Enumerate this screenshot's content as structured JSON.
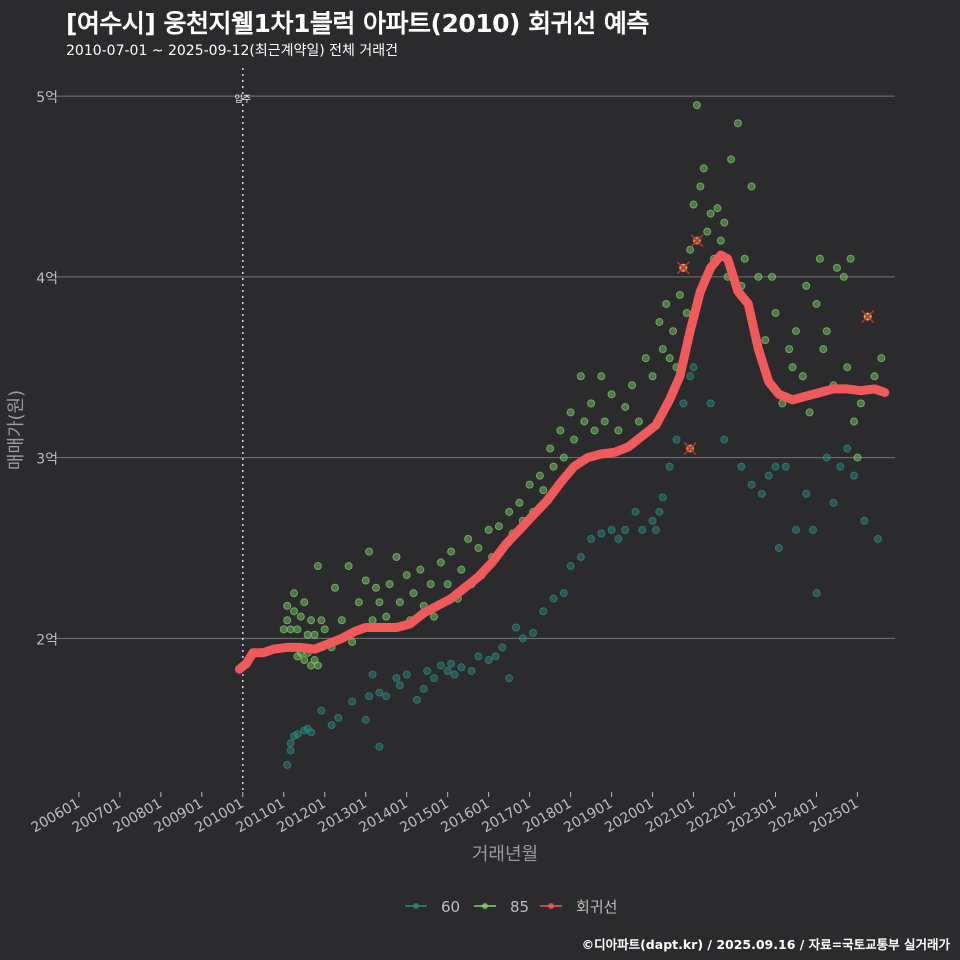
{
  "header": {
    "title": "[여수시] 웅천지웰1차1블럭 아파트(2010) 회귀선 예측",
    "subtitle": "2010-07-01 ~ 2025-09-12(최근계약일) 전체 거래건"
  },
  "footer": {
    "credit": "©디아파트(dapt.kr) / 2025.09.16 / 자료=국토교통부 실거래가"
  },
  "colors": {
    "background": "#2b2b2d",
    "grid": "#8a8a8a",
    "series_60": "#2a8f86",
    "series_85": "#7ed36a",
    "regression": "#f05a5a",
    "axis_text": "#bdbdbd",
    "marker_cross": "#c0302c"
  },
  "chart_data": {
    "type": "scatter",
    "xlabel": "거래년월",
    "ylabel": "매매가(원)",
    "x_ticks": [
      "200601",
      "200701",
      "200801",
      "200901",
      "201001",
      "201101",
      "201201",
      "201301",
      "201401",
      "201501",
      "201601",
      "201701",
      "201801",
      "201901",
      "202001",
      "202101",
      "202201",
      "202301",
      "202401",
      "202501"
    ],
    "xlim": [
      "2005-06-01",
      "2025-12-01"
    ],
    "ylim": [
      1.15,
      5.1
    ],
    "y_ticks": [
      {
        "value": 2,
        "label": "2억"
      },
      {
        "value": 3,
        "label": "3억"
      },
      {
        "value": 4,
        "label": "4억"
      },
      {
        "value": 5,
        "label": "5억"
      }
    ],
    "y_unit": "억",
    "grid": true,
    "legend_position": "bottom",
    "legend": [
      {
        "key": "60",
        "label": "60"
      },
      {
        "key": "85",
        "label": "85"
      },
      {
        "key": "reg",
        "label": "회귀선"
      }
    ],
    "annotations": [
      {
        "x": "2010-01",
        "label": "입주",
        "style": "dotted-vline"
      }
    ],
    "series": [
      {
        "name": "60",
        "points": [
          [
            "2011-02",
            1.3
          ],
          [
            "2011-03",
            1.38
          ],
          [
            "2011-03",
            1.42
          ],
          [
            "2011-04",
            1.46
          ],
          [
            "2011-05",
            1.47
          ],
          [
            "2011-07",
            1.49
          ],
          [
            "2011-08",
            1.5
          ],
          [
            "2011-09",
            1.48
          ],
          [
            "2011-12",
            1.6
          ],
          [
            "2012-03",
            1.52
          ],
          [
            "2012-05",
            1.56
          ],
          [
            "2012-09",
            1.65
          ],
          [
            "2013-01",
            1.55
          ],
          [
            "2013-02",
            1.68
          ],
          [
            "2013-03",
            1.8
          ],
          [
            "2013-05",
            1.4
          ],
          [
            "2013-05",
            1.7
          ],
          [
            "2013-07",
            1.68
          ],
          [
            "2013-10",
            1.78
          ],
          [
            "2013-11",
            1.74
          ],
          [
            "2014-01",
            1.8
          ],
          [
            "2014-04",
            1.66
          ],
          [
            "2014-06",
            1.72
          ],
          [
            "2014-07",
            1.82
          ],
          [
            "2014-09",
            1.78
          ],
          [
            "2014-11",
            1.85
          ],
          [
            "2015-01",
            1.82
          ],
          [
            "2015-02",
            1.86
          ],
          [
            "2015-03",
            1.8
          ],
          [
            "2015-05",
            1.84
          ],
          [
            "2015-08",
            1.82
          ],
          [
            "2015-10",
            1.9
          ],
          [
            "2016-01",
            1.88
          ],
          [
            "2016-03",
            1.9
          ],
          [
            "2016-05",
            1.95
          ],
          [
            "2016-07",
            1.78
          ],
          [
            "2016-09",
            2.06
          ],
          [
            "2016-11",
            2.0
          ],
          [
            "2017-02",
            2.03
          ],
          [
            "2017-05",
            2.15
          ],
          [
            "2017-08",
            2.22
          ],
          [
            "2017-11",
            2.25
          ],
          [
            "2018-01",
            2.4
          ],
          [
            "2018-04",
            2.45
          ],
          [
            "2018-07",
            2.55
          ],
          [
            "2018-10",
            2.58
          ],
          [
            "2019-01",
            2.6
          ],
          [
            "2019-03",
            2.55
          ],
          [
            "2019-05",
            2.6
          ],
          [
            "2019-08",
            2.7
          ],
          [
            "2019-10",
            2.6
          ],
          [
            "2020-01",
            2.65
          ],
          [
            "2020-02",
            2.6
          ],
          [
            "2020-03",
            2.7
          ],
          [
            "2020-04",
            2.78
          ],
          [
            "2020-06",
            2.95
          ],
          [
            "2020-08",
            3.1
          ],
          [
            "2020-10",
            3.3
          ],
          [
            "2020-12",
            3.45
          ],
          [
            "2021-01",
            3.5
          ],
          [
            "2021-06",
            3.3
          ],
          [
            "2021-10",
            3.1
          ],
          [
            "2022-03",
            2.95
          ],
          [
            "2022-06",
            2.85
          ],
          [
            "2022-09",
            2.8
          ],
          [
            "2022-11",
            2.9
          ],
          [
            "2023-01",
            2.95
          ],
          [
            "2023-02",
            2.5
          ],
          [
            "2023-04",
            2.95
          ],
          [
            "2023-07",
            2.6
          ],
          [
            "2023-10",
            2.8
          ],
          [
            "2023-12",
            2.6
          ],
          [
            "2024-01",
            2.25
          ],
          [
            "2024-04",
            3.0
          ],
          [
            "2024-06",
            2.75
          ],
          [
            "2024-08",
            2.95
          ],
          [
            "2024-10",
            3.05
          ],
          [
            "2024-12",
            2.9
          ],
          [
            "2025-03",
            2.65
          ],
          [
            "2025-07",
            2.55
          ]
        ]
      },
      {
        "name": "85",
        "points": [
          [
            "2011-01",
            2.05
          ],
          [
            "2011-02",
            2.1
          ],
          [
            "2011-02",
            2.18
          ],
          [
            "2011-03",
            1.95
          ],
          [
            "2011-03",
            2.05
          ],
          [
            "2011-04",
            2.25
          ],
          [
            "2011-04",
            2.15
          ],
          [
            "2011-05",
            2.05
          ],
          [
            "2011-05",
            1.9
          ],
          [
            "2011-06",
            2.12
          ],
          [
            "2011-06",
            1.92
          ],
          [
            "2011-07",
            2.2
          ],
          [
            "2011-07",
            1.88
          ],
          [
            "2011-08",
            1.92
          ],
          [
            "2011-08",
            2.02
          ],
          [
            "2011-09",
            1.85
          ],
          [
            "2011-09",
            2.1
          ],
          [
            "2011-10",
            1.88
          ],
          [
            "2011-10",
            2.02
          ],
          [
            "2011-11",
            1.85
          ],
          [
            "2011-11",
            2.4
          ],
          [
            "2011-12",
            1.95
          ],
          [
            "2011-12",
            2.1
          ],
          [
            "2012-01",
            2.05
          ],
          [
            "2012-03",
            1.95
          ],
          [
            "2012-04",
            2.28
          ],
          [
            "2012-06",
            2.1
          ],
          [
            "2012-08",
            2.4
          ],
          [
            "2012-09",
            1.98
          ],
          [
            "2012-11",
            2.2
          ],
          [
            "2013-01",
            2.32
          ],
          [
            "2013-02",
            2.48
          ],
          [
            "2013-03",
            2.1
          ],
          [
            "2013-04",
            2.28
          ],
          [
            "2013-05",
            2.2
          ],
          [
            "2013-07",
            2.12
          ],
          [
            "2013-08",
            2.3
          ],
          [
            "2013-10",
            2.45
          ],
          [
            "2013-11",
            2.2
          ],
          [
            "2014-01",
            2.35
          ],
          [
            "2014-02",
            2.1
          ],
          [
            "2014-03",
            2.25
          ],
          [
            "2014-05",
            2.38
          ],
          [
            "2014-06",
            2.18
          ],
          [
            "2014-08",
            2.3
          ],
          [
            "2014-09",
            2.12
          ],
          [
            "2014-11",
            2.42
          ],
          [
            "2015-01",
            2.3
          ],
          [
            "2015-02",
            2.48
          ],
          [
            "2015-04",
            2.22
          ],
          [
            "2015-05",
            2.38
          ],
          [
            "2015-07",
            2.55
          ],
          [
            "2015-08",
            2.3
          ],
          [
            "2015-10",
            2.5
          ],
          [
            "2015-11",
            2.35
          ],
          [
            "2016-01",
            2.6
          ],
          [
            "2016-02",
            2.45
          ],
          [
            "2016-04",
            2.62
          ],
          [
            "2016-05",
            2.5
          ],
          [
            "2016-07",
            2.7
          ],
          [
            "2016-08",
            2.58
          ],
          [
            "2016-10",
            2.75
          ],
          [
            "2016-11",
            2.65
          ],
          [
            "2017-01",
            2.85
          ],
          [
            "2017-02",
            2.7
          ],
          [
            "2017-04",
            2.9
          ],
          [
            "2017-05",
            2.82
          ],
          [
            "2017-07",
            3.05
          ],
          [
            "2017-08",
            2.95
          ],
          [
            "2017-10",
            3.15
          ],
          [
            "2017-11",
            3.0
          ],
          [
            "2018-01",
            3.25
          ],
          [
            "2018-02",
            3.1
          ],
          [
            "2018-04",
            3.45
          ],
          [
            "2018-05",
            3.2
          ],
          [
            "2018-07",
            3.3
          ],
          [
            "2018-08",
            3.15
          ],
          [
            "2018-10",
            3.45
          ],
          [
            "2018-11",
            3.2
          ],
          [
            "2019-01",
            3.35
          ],
          [
            "2019-03",
            3.15
          ],
          [
            "2019-05",
            3.28
          ],
          [
            "2019-07",
            3.4
          ],
          [
            "2019-09",
            3.2
          ],
          [
            "2019-11",
            3.55
          ],
          [
            "2020-01",
            3.45
          ],
          [
            "2020-03",
            3.75
          ],
          [
            "2020-04",
            3.6
          ],
          [
            "2020-05",
            3.85
          ],
          [
            "2020-06",
            3.55
          ],
          [
            "2020-07",
            3.7
          ],
          [
            "2020-08",
            3.5
          ],
          [
            "2020-09",
            3.9
          ],
          [
            "2020-10",
            4.05
          ],
          [
            "2020-11",
            3.8
          ],
          [
            "2020-12",
            4.15
          ],
          [
            "2021-01",
            4.4
          ],
          [
            "2021-02",
            4.95
          ],
          [
            "2021-03",
            4.5
          ],
          [
            "2021-04",
            4.6
          ],
          [
            "2021-05",
            4.25
          ],
          [
            "2021-06",
            4.35
          ],
          [
            "2021-07",
            4.1
          ],
          [
            "2021-08",
            4.38
          ],
          [
            "2021-09",
            4.2
          ],
          [
            "2021-10",
            4.3
          ],
          [
            "2021-11",
            4.0
          ],
          [
            "2021-12",
            4.65
          ],
          [
            "2022-02",
            4.85
          ],
          [
            "2022-03",
            3.95
          ],
          [
            "2022-04",
            4.1
          ],
          [
            "2022-06",
            4.5
          ],
          [
            "2022-08",
            4.0
          ],
          [
            "2022-10",
            3.65
          ],
          [
            "2022-12",
            4.0
          ],
          [
            "2023-01",
            3.8
          ],
          [
            "2023-03",
            3.3
          ],
          [
            "2023-05",
            3.6
          ],
          [
            "2023-06",
            3.5
          ],
          [
            "2023-07",
            3.7
          ],
          [
            "2023-09",
            3.45
          ],
          [
            "2023-10",
            3.95
          ],
          [
            "2023-11",
            3.25
          ],
          [
            "2024-01",
            3.85
          ],
          [
            "2024-02",
            4.1
          ],
          [
            "2024-03",
            3.6
          ],
          [
            "2024-04",
            3.7
          ],
          [
            "2024-06",
            3.4
          ],
          [
            "2024-07",
            4.05
          ],
          [
            "2024-09",
            4.0
          ],
          [
            "2024-10",
            3.5
          ],
          [
            "2024-11",
            4.1
          ],
          [
            "2024-12",
            3.2
          ],
          [
            "2025-01",
            3.0
          ],
          [
            "2025-02",
            3.3
          ],
          [
            "2025-04",
            3.78
          ],
          [
            "2025-06",
            3.45
          ],
          [
            "2025-08",
            3.55
          ]
        ]
      },
      {
        "name": "회귀선",
        "points": [
          [
            "2009-12",
            1.83
          ],
          [
            "2010-02",
            1.86
          ],
          [
            "2010-04",
            1.92
          ],
          [
            "2010-07",
            1.92
          ],
          [
            "2010-10",
            1.94
          ],
          [
            "2011-02",
            1.95
          ],
          [
            "2011-06",
            1.95
          ],
          [
            "2011-10",
            1.94
          ],
          [
            "2012-02",
            1.97
          ],
          [
            "2012-06",
            2.0
          ],
          [
            "2012-10",
            2.04
          ],
          [
            "2013-01",
            2.06
          ],
          [
            "2013-06",
            2.06
          ],
          [
            "2013-10",
            2.06
          ],
          [
            "2014-02",
            2.08
          ],
          [
            "2014-06",
            2.14
          ],
          [
            "2014-10",
            2.18
          ],
          [
            "2015-02",
            2.22
          ],
          [
            "2015-06",
            2.28
          ],
          [
            "2015-10",
            2.34
          ],
          [
            "2016-02",
            2.42
          ],
          [
            "2016-06",
            2.52
          ],
          [
            "2016-10",
            2.6
          ],
          [
            "2017-02",
            2.68
          ],
          [
            "2017-06",
            2.76
          ],
          [
            "2017-10",
            2.86
          ],
          [
            "2018-02",
            2.95
          ],
          [
            "2018-06",
            3.0
          ],
          [
            "2018-10",
            3.02
          ],
          [
            "2019-02",
            3.03
          ],
          [
            "2019-06",
            3.06
          ],
          [
            "2019-10",
            3.12
          ],
          [
            "2020-02",
            3.18
          ],
          [
            "2020-06",
            3.32
          ],
          [
            "2020-09",
            3.45
          ],
          [
            "2020-12",
            3.7
          ],
          [
            "2021-03",
            3.92
          ],
          [
            "2021-06",
            4.05
          ],
          [
            "2021-09",
            4.12
          ],
          [
            "2021-11",
            4.1
          ],
          [
            "2022-02",
            3.92
          ],
          [
            "2022-05",
            3.85
          ],
          [
            "2022-08",
            3.6
          ],
          [
            "2022-11",
            3.42
          ],
          [
            "2023-02",
            3.35
          ],
          [
            "2023-06",
            3.32
          ],
          [
            "2023-10",
            3.34
          ],
          [
            "2024-02",
            3.36
          ],
          [
            "2024-06",
            3.38
          ],
          [
            "2024-10",
            3.38
          ],
          [
            "2025-02",
            3.37
          ],
          [
            "2025-06",
            3.38
          ],
          [
            "2025-09",
            3.36
          ]
        ]
      }
    ],
    "outliers_marked": [
      [
        "2020-10",
        4.05
      ],
      [
        "2021-02",
        4.2
      ],
      [
        "2020-12",
        3.05
      ],
      [
        "2025-04",
        3.78
      ]
    ]
  }
}
